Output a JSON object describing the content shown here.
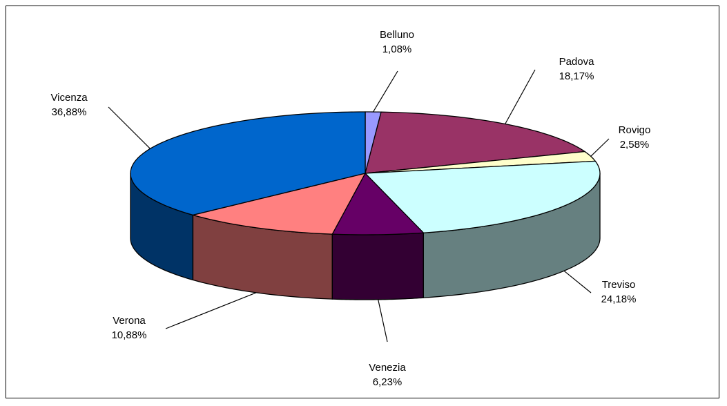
{
  "chart_data": {
    "type": "pie",
    "title": "",
    "legend": "none",
    "slices": [
      {
        "name": "Belluno",
        "value": 1.08,
        "value_label": "1,08%",
        "color": "#9999FF",
        "side_color": "#4D4D80"
      },
      {
        "name": "Padova",
        "value": 18.17,
        "value_label": "18,17%",
        "color": "#993366",
        "side_color": "#4D1A33"
      },
      {
        "name": "Rovigo",
        "value": 2.58,
        "value_label": "2,58%",
        "color": "#FFFFCC",
        "side_color": "#808066"
      },
      {
        "name": "Treviso",
        "value": 24.18,
        "value_label": "24,18%",
        "color": "#CCFFFF",
        "side_color": "#668080"
      },
      {
        "name": "Venezia",
        "value": 6.23,
        "value_label": "6,23%",
        "color": "#660066",
        "side_color": "#330033"
      },
      {
        "name": "Verona",
        "value": 10.88,
        "value_label": "10,88%",
        "color": "#FF8080",
        "side_color": "#804040"
      },
      {
        "name": "Vicenza",
        "value": 36.88,
        "value_label": "36,88%",
        "color": "#0066CC",
        "side_color": "#003366"
      }
    ]
  }
}
